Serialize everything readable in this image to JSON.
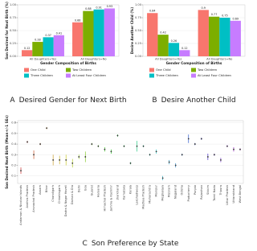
{
  "chart_data": [
    {
      "type": "bar",
      "panel": "A",
      "title": "Desired Gender for Next Birth",
      "xlabel": "Gender Composition of Births",
      "ylabel": "Son Desired for Next Birth (%)",
      "categories": [
        "All Daughters=Yes",
        "All Daughters=No"
      ],
      "series": [
        {
          "name": "One Child",
          "color": "#F8766D",
          "values": [
            0.12,
            0.66
          ]
        },
        {
          "name": "Two Children",
          "color": "#7CAE00",
          "values": [
            0.28,
            0.88
          ]
        },
        {
          "name": "Three Children",
          "color": "#00BFC4",
          "values": [
            0.37,
            0.91
          ]
        },
        {
          "name": "At Least Four Children",
          "color": "#C77CFF",
          "values": [
            0.41,
            0.93
          ]
        }
      ],
      "ylim": [
        0,
        1.0
      ],
      "yticks": [
        {
          "value": 0,
          "label": "0.00"
        },
        {
          "value": 0.25,
          "label": "0.25"
        },
        {
          "value": 0.5,
          "label": "0.50"
        },
        {
          "value": 0.75,
          "label": "0.75"
        },
        {
          "value": 1.0,
          "label": "1.00"
        }
      ],
      "grid": true
    },
    {
      "type": "bar",
      "panel": "B",
      "title": "Desire Another Child",
      "xlabel": "Gender Composition of Births",
      "ylabel": "Desire Another Child (%)",
      "categories": [
        "All Daughters=Yes",
        "All Daughters=No"
      ],
      "series": [
        {
          "name": "One Child",
          "color": "#F8766D",
          "values": [
            0.84,
            0.9
          ]
        },
        {
          "name": "Two Children",
          "color": "#7CAE00",
          "values": [
            0.42,
            0.77
          ]
        },
        {
          "name": "Three Children",
          "color": "#00BFC4",
          "values": [
            0.26,
            0.75
          ]
        },
        {
          "name": "At Least Four Children",
          "color": "#C77CFF",
          "values": [
            0.12,
            0.69
          ]
        }
      ],
      "ylim": [
        0,
        1.0
      ],
      "yticks": [
        {
          "value": 0,
          "label": "0.00"
        },
        {
          "value": 0.25,
          "label": "0.25"
        },
        {
          "value": 0.5,
          "label": "0.50"
        },
        {
          "value": 0.75,
          "label": "0.75"
        },
        {
          "value": 1.0,
          "label": "1.00"
        }
      ],
      "grid": true
    },
    {
      "type": "errorbar",
      "panel": "C",
      "title": "Son Preference by State",
      "ylabel": "Son Desired Next Birth (Mean+/-1 SEs)",
      "categories": [
        "Andaman & Nicobar Islands",
        "Andhra Pradesh",
        "Arunachal Pradesh",
        "Assam",
        "Bihar",
        "Chandigarh",
        "Chhattisgarh",
        "Dadra & Nagar Haveli",
        "Daman & Diu",
        "Delhi",
        "Goa",
        "Gujarat",
        "Haryana",
        "Himachal Pradesh",
        "Jammu & Kashmir",
        "Jharkhand",
        "Karnataka",
        "Kerala",
        "Lakshadweep",
        "Madhya Pradesh",
        "Maharashtra",
        "Manipur",
        "Meghalaya",
        "Mizoram",
        "Nagaland",
        "Odisha",
        "Puducherry",
        "Punjab",
        "Rajasthan",
        "Sikkim",
        "Tamil Nadu",
        "Tripura",
        "Uttar Pradesh",
        "Uttarakhand",
        "West Bengal"
      ],
      "values": [
        0.15,
        0.42,
        0.3,
        0.4,
        0.55,
        0.25,
        0.25,
        0.25,
        0.22,
        0.28,
        0.28,
        0.4,
        0.38,
        0.35,
        0.33,
        0.48,
        0.38,
        0.22,
        0.38,
        0.38,
        0.3,
        0.33,
        0.08,
        0.23,
        0.2,
        0.3,
        0.45,
        0.4,
        0.45,
        0.28,
        0.3,
        0.25,
        0.38,
        0.35,
        0.35
      ],
      "errors": [
        0.03,
        0.01,
        0.04,
        0.01,
        0.01,
        0.05,
        0.04,
        0.05,
        0.04,
        0.02,
        0.05,
        0.01,
        0.01,
        0.02,
        0.02,
        0.01,
        0.01,
        0.01,
        0.05,
        0.01,
        0.01,
        0.02,
        0.02,
        0.02,
        0.02,
        0.01,
        0.04,
        0.01,
        0.01,
        0.03,
        0.01,
        0.02,
        0.01,
        0.02,
        0.01
      ],
      "ylim": [
        0.03,
        0.62
      ],
      "yticks": [
        0.1,
        0.2,
        0.3,
        0.4,
        0.5,
        0.6
      ],
      "grid": true
    }
  ]
}
